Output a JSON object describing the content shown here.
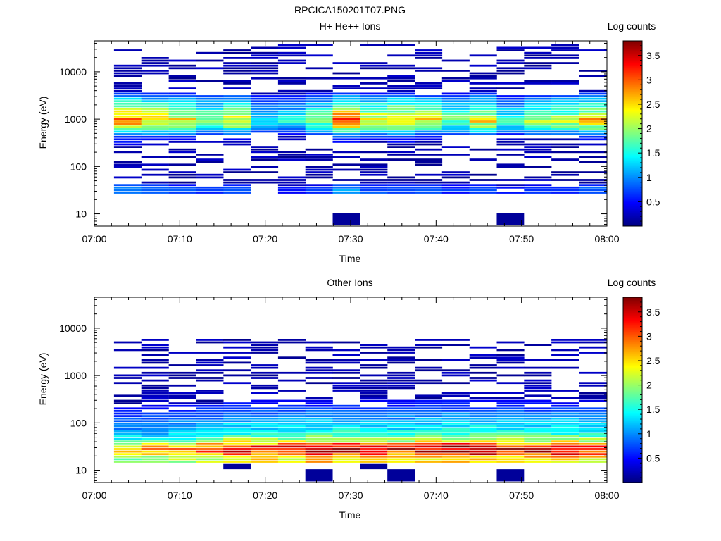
{
  "figure": {
    "title": "RPCICA150201T07.PNG"
  },
  "colorbar": {
    "label": "Log counts",
    "ticks": [
      "0.5",
      "1",
      "1.5",
      "2",
      "2.5",
      "3",
      "3.5"
    ],
    "tick_values": [
      0.5,
      1,
      1.5,
      2,
      2.5,
      3,
      3.5
    ],
    "range": [
      0,
      3.8
    ],
    "colormap": "jet"
  },
  "x_axis": {
    "label": "Time",
    "tick_labels": [
      "07:00",
      "07:10",
      "07:20",
      "07:30",
      "07:40",
      "07:50",
      "08:00"
    ],
    "tick_minutes": [
      0,
      10,
      20,
      30,
      40,
      50,
      60
    ],
    "range_minutes": [
      0,
      60
    ]
  },
  "y_axis": {
    "label": "Energy (eV)",
    "scale": "log",
    "tick_labels": [
      "10",
      "100",
      "1000",
      "10000"
    ],
    "tick_values": [
      10,
      100,
      1000,
      10000
    ],
    "range": [
      5.5,
      45000
    ]
  },
  "chart_data": [
    {
      "type": "heatmap",
      "title": "H+ He++ Ions",
      "xlabel": "Time",
      "ylabel": "Energy (eV)",
      "colorbar_label": "Log counts",
      "time_bins_minutes": [
        [
          2.3,
          5.5
        ],
        [
          5.5,
          8.7
        ],
        [
          8.7,
          11.9
        ],
        [
          11.9,
          15.1
        ],
        [
          15.1,
          18.3
        ],
        [
          18.3,
          21.5
        ],
        [
          21.5,
          24.7
        ],
        [
          24.7,
          27.9
        ],
        [
          27.9,
          31.1
        ],
        [
          31.1,
          34.3
        ],
        [
          34.3,
          37.5
        ],
        [
          37.5,
          40.7
        ],
        [
          40.7,
          43.9
        ],
        [
          43.9,
          47.1
        ],
        [
          47.1,
          50.3
        ],
        [
          50.3,
          53.5
        ],
        [
          53.5,
          56.7
        ],
        [
          56.7,
          60
        ]
      ],
      "profile": [
        {
          "energy_eV": 22,
          "value": 0.0
        },
        {
          "energy_eV": 28,
          "value": 0.9
        },
        {
          "energy_eV": 34,
          "value": 1.0
        },
        {
          "energy_eV": 50,
          "value": 0.2
        },
        {
          "energy_eV": 150,
          "value": 0.1
        },
        {
          "energy_eV": 400,
          "value": 0.6
        },
        {
          "energy_eV": 700,
          "value": 2.2
        },
        {
          "energy_eV": 950,
          "value": 2.9
        },
        {
          "energy_eV": 1300,
          "value": 2.3
        },
        {
          "energy_eV": 2000,
          "value": 1.7
        },
        {
          "energy_eV": 2600,
          "value": 1.3
        },
        {
          "energy_eV": 4000,
          "value": 0.3
        },
        {
          "energy_eV": 30000,
          "value": 0.1
        }
      ],
      "column_scale": [
        1.05,
        0.95,
        0.9,
        0.75,
        0.85,
        0.5,
        0.55,
        0.7,
        1.1,
        0.9,
        0.95,
        0.85,
        0.7,
        0.9,
        0.6,
        0.75,
        0.8,
        0.95
      ],
      "sparse_energy_range_eV": [
        40,
        40000
      ],
      "isolated_cells": [
        {
          "t": [
            27.9,
            31.1
          ],
          "energy_eV": [
            5.8,
            10.5
          ],
          "value": 0.1
        },
        {
          "t": [
            47.1,
            50.3
          ],
          "energy_eV": [
            5.8,
            10.5
          ],
          "value": 0.1
        }
      ],
      "zlim": [
        0,
        3.8
      ]
    },
    {
      "type": "heatmap",
      "title": "Other Ions",
      "xlabel": "Time",
      "ylabel": "Energy (eV)",
      "colorbar_label": "Log counts",
      "time_bins_minutes": [
        [
          2.3,
          5.5
        ],
        [
          5.5,
          8.7
        ],
        [
          8.7,
          11.9
        ],
        [
          11.9,
          15.1
        ],
        [
          15.1,
          18.3
        ],
        [
          18.3,
          21.5
        ],
        [
          21.5,
          24.7
        ],
        [
          24.7,
          27.9
        ],
        [
          27.9,
          31.1
        ],
        [
          31.1,
          34.3
        ],
        [
          34.3,
          37.5
        ],
        [
          37.5,
          40.7
        ],
        [
          40.7,
          43.9
        ],
        [
          43.9,
          47.1
        ],
        [
          47.1,
          50.3
        ],
        [
          50.3,
          53.5
        ],
        [
          53.5,
          56.7
        ],
        [
          56.7,
          60
        ]
      ],
      "profile": [
        {
          "energy_eV": 16,
          "value": 2.5
        },
        {
          "energy_eV": 19,
          "value": 2.6
        },
        {
          "energy_eV": 22,
          "value": 3.1
        },
        {
          "energy_eV": 27,
          "value": 3.5
        },
        {
          "energy_eV": 32,
          "value": 3.3
        },
        {
          "energy_eV": 40,
          "value": 2.2
        },
        {
          "energy_eV": 60,
          "value": 1.5
        },
        {
          "energy_eV": 100,
          "value": 1.2
        },
        {
          "energy_eV": 150,
          "value": 0.9
        },
        {
          "energy_eV": 250,
          "value": 0.5
        },
        {
          "energy_eV": 600,
          "value": 0.2
        },
        {
          "energy_eV": 1000,
          "value": 0.4
        },
        {
          "energy_eV": 2400,
          "value": 0.3
        },
        {
          "energy_eV": 5000,
          "value": 0.1
        }
      ],
      "column_scale": [
        0.75,
        0.8,
        0.85,
        0.9,
        1.05,
        1.0,
        1.0,
        1.05,
        1.05,
        1.0,
        1.0,
        1.05,
        1.1,
        1.08,
        1.05,
        1.02,
        1.05,
        1.0
      ],
      "sparse_energy_range_eV": [
        150,
        6000
      ],
      "isolated_cells": [
        {
          "t": [
            15.1,
            18.3
          ],
          "energy_eV": [
            10.5,
            14.0
          ],
          "value": 0.1
        },
        {
          "t": [
            24.7,
            27.9
          ],
          "energy_eV": [
            5.8,
            10.5
          ],
          "value": 0.1
        },
        {
          "t": [
            31.1,
            34.3
          ],
          "energy_eV": [
            10.5,
            14.0
          ],
          "value": 0.1
        },
        {
          "t": [
            34.3,
            37.5
          ],
          "energy_eV": [
            5.8,
            10.5
          ],
          "value": 0.1
        },
        {
          "t": [
            47.1,
            50.3
          ],
          "energy_eV": [
            5.8,
            10.5
          ],
          "value": 0.1
        }
      ],
      "zlim": [
        0,
        3.8
      ]
    }
  ]
}
